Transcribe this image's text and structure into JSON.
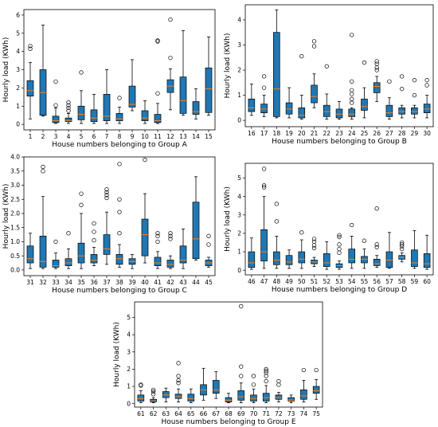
{
  "chart_data": [
    {
      "type": "box",
      "xlabel": "House numbers belonging to Group A",
      "ylabel": "Hourly load (KWh)",
      "ylim": [
        -0.3,
        6.3
      ],
      "yticks": [
        0,
        1,
        2,
        3,
        4,
        5,
        6
      ],
      "ytick_labels": [
        "0",
        "1",
        "2",
        "3",
        "4",
        "5",
        "6"
      ],
      "box_color": "#1f77b4",
      "categories": [
        "1",
        "2",
        "3",
        "4",
        "5",
        "6",
        "7",
        "8",
        "9",
        "10",
        "11",
        "12",
        "13",
        "14",
        "15"
      ],
      "boxes": [
        {
          "wl": 0.3,
          "q1": 1.55,
          "med": 1.85,
          "q3": 2.4,
          "wh": 3.4,
          "fliers": [
            4.15,
            4.3
          ]
        },
        {
          "wl": 0.45,
          "q1": 0.5,
          "med": 1.75,
          "q3": 3.0,
          "wh": 5.45,
          "fliers": []
        },
        {
          "wl": 0.05,
          "q1": 0.1,
          "med": 0.2,
          "q3": 0.45,
          "wh": 0.9,
          "fliers": [
            1.05,
            2.35
          ]
        },
        {
          "wl": 0.05,
          "q1": 0.15,
          "med": 0.2,
          "q3": 0.35,
          "wh": 0.6,
          "fliers": [
            0.75,
            0.9,
            1.05,
            1.2
          ]
        },
        {
          "wl": 0.05,
          "q1": 0.25,
          "med": 0.55,
          "q3": 1.0,
          "wh": 1.85,
          "fliers": [
            2.85
          ]
        },
        {
          "wl": 0.05,
          "q1": 0.15,
          "med": 0.35,
          "q3": 0.8,
          "wh": 1.65,
          "fliers": []
        },
        {
          "wl": 0.05,
          "q1": 0.2,
          "med": 0.45,
          "q3": 1.65,
          "wh": 3.0,
          "fliers": []
        },
        {
          "wl": 0.05,
          "q1": 0.2,
          "med": 0.3,
          "q3": 0.6,
          "wh": 0.95,
          "fliers": [
            1.45
          ]
        },
        {
          "wl": 0.75,
          "q1": 0.95,
          "med": 1.1,
          "q3": 2.1,
          "wh": 3.55,
          "fliers": []
        },
        {
          "wl": 0.05,
          "q1": 0.2,
          "med": 0.35,
          "q3": 0.75,
          "wh": 1.3,
          "fliers": []
        },
        {
          "wl": 0.05,
          "q1": 0.1,
          "med": 0.2,
          "q3": 0.55,
          "wh": 1.15,
          "fliers": [
            1.7,
            4.55,
            4.6
          ]
        },
        {
          "wl": 0.8,
          "q1": 1.75,
          "med": 2.1,
          "q3": 2.45,
          "wh": 3.05,
          "fliers": [
            3.65,
            5.75
          ]
        },
        {
          "wl": 0.5,
          "q1": 0.6,
          "med": 1.3,
          "q3": 2.6,
          "wh": 5.15,
          "fliers": []
        },
        {
          "wl": 0.3,
          "q1": 0.55,
          "med": 0.7,
          "q3": 1.25,
          "wh": 1.95,
          "fliers": []
        },
        {
          "wl": 0.5,
          "q1": 0.65,
          "med": 1.95,
          "q3": 3.1,
          "wh": 4.8,
          "fliers": []
        }
      ]
    },
    {
      "type": "box",
      "xlabel": "House numbers belonging to Group B",
      "ylabel": "Hourly load (KWh)",
      "ylim": [
        -0.25,
        4.6
      ],
      "yticks": [
        0,
        1,
        2,
        3,
        4
      ],
      "ytick_labels": [
        "0",
        "1",
        "2",
        "3",
        "4"
      ],
      "box_color": "#1f77b4",
      "categories": [
        "16",
        "17",
        "18",
        "19",
        "20",
        "21",
        "22",
        "23",
        "24",
        "25",
        "26",
        "27",
        "28",
        "29",
        "30"
      ],
      "boxes": [
        {
          "wl": 0.2,
          "q1": 0.35,
          "med": 0.5,
          "q3": 0.85,
          "wh": 1.45,
          "fliers": []
        },
        {
          "wl": 0.15,
          "q1": 0.3,
          "med": 0.45,
          "q3": 0.65,
          "wh": 1.0,
          "fliers": [
            1.3,
            1.75
          ]
        },
        {
          "wl": 0.1,
          "q1": 0.15,
          "med": 1.25,
          "q3": 3.5,
          "wh": 4.4,
          "fliers": []
        },
        {
          "wl": 0.1,
          "q1": 0.25,
          "med": 0.45,
          "q3": 0.7,
          "wh": 1.3,
          "fliers": []
        },
        {
          "wl": 0.05,
          "q1": 0.1,
          "med": 0.2,
          "q3": 0.5,
          "wh": 1.0,
          "fliers": [
            2.55
          ]
        },
        {
          "wl": 0.5,
          "q1": 0.7,
          "med": 0.95,
          "q3": 1.4,
          "wh": 1.85,
          "fliers": [
            2.95,
            3.15
          ]
        },
        {
          "wl": 0.05,
          "q1": 0.15,
          "med": 0.35,
          "q3": 0.6,
          "wh": 1.05,
          "fliers": [
            2.15
          ]
        },
        {
          "wl": 0.05,
          "q1": 0.1,
          "med": 0.25,
          "q3": 0.45,
          "wh": 0.75,
          "fliers": []
        },
        {
          "wl": 0.05,
          "q1": 0.15,
          "med": 0.25,
          "q3": 0.45,
          "wh": 0.5,
          "fliers": [
            0.7,
            0.85,
            1.05,
            1.2,
            1.55,
            3.4
          ]
        },
        {
          "wl": 0.1,
          "q1": 0.4,
          "med": 0.55,
          "q3": 0.85,
          "wh": 1.3,
          "fliers": [
            2.3
          ]
        },
        {
          "wl": 0.75,
          "q1": 1.1,
          "med": 1.35,
          "q3": 1.5,
          "wh": 1.75,
          "fliers": [
            2.0,
            2.1,
            2.25,
            2.35
          ]
        },
        {
          "wl": 0.05,
          "q1": 0.15,
          "med": 0.3,
          "q3": 0.6,
          "wh": 0.9,
          "fliers": [
            1.55
          ]
        },
        {
          "wl": 0.1,
          "q1": 0.25,
          "med": 0.35,
          "q3": 0.5,
          "wh": 0.6,
          "fliers": [
            1.25,
            1.75
          ]
        },
        {
          "wl": 0.1,
          "q1": 0.25,
          "med": 0.35,
          "q3": 0.5,
          "wh": 0.6,
          "fliers": [
            1.0,
            1.6
          ]
        },
        {
          "wl": 0.1,
          "q1": 0.3,
          "med": 0.45,
          "q3": 0.65,
          "wh": 1.0,
          "fliers": [
            1.4,
            1.6
          ]
        }
      ]
    },
    {
      "type": "box",
      "xlabel": "House numbers belonging to Group C",
      "ylabel": "Hourly load (KWh)",
      "ylim": [
        -0.2,
        4.0
      ],
      "yticks": [
        0,
        0.5,
        1,
        1.5,
        2,
        2.5,
        3,
        3.5,
        4
      ],
      "ytick_labels": [
        "0.0",
        "0.5",
        "1.0",
        "1.5",
        "2.0",
        "2.5",
        "3.0",
        "3.5",
        "4.0"
      ],
      "box_color": "#1f77b4",
      "categories": [
        "31",
        "32",
        "33",
        "34",
        "35",
        "36",
        "37",
        "38",
        "39",
        "40",
        "41",
        "42",
        "43",
        "44",
        "45"
      ],
      "boxes": [
        {
          "wl": 0.05,
          "q1": 0.25,
          "med": 0.4,
          "q3": 0.85,
          "wh": 1.3,
          "fliers": []
        },
        {
          "wl": 0.05,
          "q1": 0.1,
          "med": 0.3,
          "q3": 1.2,
          "wh": 2.6,
          "fliers": [
            3.5,
            3.65
          ]
        },
        {
          "wl": 0.05,
          "q1": 0.1,
          "med": 0.15,
          "q3": 0.35,
          "wh": 0.6,
          "fliers": [
            1.0
          ]
        },
        {
          "wl": 0.05,
          "q1": 0.15,
          "med": 0.25,
          "q3": 0.4,
          "wh": 0.75,
          "fliers": [
            1.3
          ]
        },
        {
          "wl": 0.05,
          "q1": 0.25,
          "med": 0.5,
          "q3": 0.95,
          "wh": 2.0,
          "fliers": [
            2.3,
            2.7
          ]
        },
        {
          "wl": 0.15,
          "q1": 0.25,
          "med": 0.35,
          "q3": 0.55,
          "wh": 0.8,
          "fliers": [
            1.05,
            1.35,
            1.65
          ]
        },
        {
          "wl": 0.2,
          "q1": 0.55,
          "med": 0.75,
          "q3": 1.25,
          "wh": 2.05,
          "fliers": [
            2.55,
            2.65,
            2.75,
            2.85
          ]
        },
        {
          "wl": 0.1,
          "q1": 0.2,
          "med": 0.4,
          "q3": 0.55,
          "wh": 0.9,
          "fliers": [
            1.3,
            2.05,
            2.5,
            3.75
          ]
        },
        {
          "wl": 0.05,
          "q1": 0.2,
          "med": 0.3,
          "q3": 0.4,
          "wh": 0.55,
          "fliers": []
        },
        {
          "wl": 0.25,
          "q1": 0.5,
          "med": 1.25,
          "q3": 1.8,
          "wh": 2.7,
          "fliers": [
            3.9
          ]
        },
        {
          "wl": 0.05,
          "q1": 0.15,
          "med": 0.25,
          "q3": 0.45,
          "wh": 0.65,
          "fliers": [
            1.0,
            1.2,
            1.3
          ]
        },
        {
          "wl": 0.05,
          "q1": 0.1,
          "med": 0.2,
          "q3": 0.35,
          "wh": 0.5,
          "fliers": [
            1.1,
            1.2,
            1.3
          ]
        },
        {
          "wl": 0.05,
          "q1": 0.25,
          "med": 0.35,
          "q3": 0.85,
          "wh": 1.45,
          "fliers": []
        },
        {
          "wl": 0.35,
          "q1": 0.4,
          "med": 1.1,
          "q3": 2.4,
          "wh": 3.3,
          "fliers": []
        },
        {
          "wl": 0.1,
          "q1": 0.15,
          "med": 0.25,
          "q3": 0.35,
          "wh": 0.45,
          "fliers": [
            0.9,
            1.2
          ]
        }
      ]
    },
    {
      "type": "box",
      "xlabel": "House numbers belonging to Group D",
      "ylabel": "Hourly load (KWh)",
      "ylim": [
        -0.25,
        5.8
      ],
      "yticks": [
        0,
        1,
        2,
        3,
        4,
        5
      ],
      "ytick_labels": [
        "0",
        "1",
        "2",
        "3",
        "4",
        "5"
      ],
      "box_color": "#1f77b4",
      "categories": [
        "46",
        "47",
        "48",
        "49",
        "50",
        "51",
        "52",
        "53",
        "54",
        "55",
        "56",
        "57",
        "58",
        "59",
        "60"
      ],
      "boxes": [
        {
          "wl": 0.05,
          "q1": 0.15,
          "med": 0.4,
          "q3": 1.0,
          "wh": 1.75,
          "fliers": []
        },
        {
          "wl": 0.1,
          "q1": 0.5,
          "med": 1.0,
          "q3": 2.2,
          "wh": 4.0,
          "fliers": [
            4.5,
            4.6,
            5.5
          ]
        },
        {
          "wl": 0.1,
          "q1": 0.3,
          "med": 0.55,
          "q3": 1.0,
          "wh": 1.85,
          "fliers": [
            2.65,
            3.6
          ]
        },
        {
          "wl": 0.1,
          "q1": 0.3,
          "med": 0.45,
          "q3": 0.8,
          "wh": 1.1,
          "fliers": []
        },
        {
          "wl": 0.1,
          "q1": 0.4,
          "med": 0.6,
          "q3": 1.0,
          "wh": 1.65,
          "fliers": [
            2.05
          ]
        },
        {
          "wl": 0.2,
          "q1": 0.35,
          "med": 0.45,
          "q3": 0.55,
          "wh": 0.7,
          "fliers": [
            1.2,
            1.35,
            1.55,
            1.7
          ]
        },
        {
          "wl": 0.05,
          "q1": 0.2,
          "med": 0.4,
          "q3": 0.9,
          "wh": 1.55,
          "fliers": []
        },
        {
          "wl": 0.05,
          "q1": 0.15,
          "med": 0.25,
          "q3": 0.35,
          "wh": 0.5,
          "fliers": [
            0.95,
            1.15,
            1.4,
            1.8,
            1.9
          ]
        },
        {
          "wl": 0.1,
          "q1": 0.4,
          "med": 0.6,
          "q3": 1.15,
          "wh": 1.85,
          "fliers": [
            2.45
          ]
        },
        {
          "wl": 0.1,
          "q1": 0.4,
          "med": 0.6,
          "q3": 0.75,
          "wh": 1.15,
          "fliers": [
            1.6
          ]
        },
        {
          "wl": 0.15,
          "q1": 0.25,
          "med": 0.35,
          "q3": 0.6,
          "wh": 0.8,
          "fliers": [
            1.25,
            1.4,
            3.35
          ]
        },
        {
          "wl": 0.1,
          "q1": 0.15,
          "med": 0.55,
          "q3": 1.0,
          "wh": 2.05,
          "fliers": []
        },
        {
          "wl": 0.45,
          "q1": 0.6,
          "med": 0.7,
          "q3": 0.8,
          "wh": 0.95,
          "fliers": [
            1.15,
            1.3,
            1.4,
            1.5
          ]
        },
        {
          "wl": 0.1,
          "q1": 0.2,
          "med": 0.4,
          "q3": 1.1,
          "wh": 2.15,
          "fliers": []
        },
        {
          "wl": 0.05,
          "q1": 0.15,
          "med": 0.35,
          "q3": 0.9,
          "wh": 1.9,
          "fliers": []
        }
      ]
    },
    {
      "type": "box",
      "xlabel": "House numbers belonging to Group E",
      "ylabel": "Hourly load (KWh)",
      "ylim": [
        -0.2,
        5.9
      ],
      "yticks": [
        0,
        1,
        2,
        3,
        4,
        5
      ],
      "ytick_labels": [
        "0",
        "1",
        "2",
        "3",
        "4",
        "5"
      ],
      "box_color": "#1f77b4",
      "categories": [
        "61",
        "62",
        "63",
        "64",
        "65",
        "66",
        "67",
        "68",
        "69",
        "70",
        "71",
        "72",
        "73",
        "74",
        "75"
      ],
      "boxes": [
        {
          "wl": 0.05,
          "q1": 0.15,
          "med": 0.3,
          "q3": 0.5,
          "wh": 0.75,
          "fliers": [
            1.05,
            1.1
          ]
        },
        {
          "wl": 0.05,
          "q1": 0.1,
          "med": 0.15,
          "q3": 0.25,
          "wh": 0.35,
          "fliers": [
            0.55,
            0.7,
            0.8
          ]
        },
        {
          "wl": 0.1,
          "q1": 0.35,
          "med": 0.5,
          "q3": 0.7,
          "wh": 0.9,
          "fliers": []
        },
        {
          "wl": 0.1,
          "q1": 0.3,
          "med": 0.4,
          "q3": 0.55,
          "wh": 0.85,
          "fliers": [
            1.2,
            1.35,
            1.6,
            2.35
          ]
        },
        {
          "wl": 0.05,
          "q1": 0.15,
          "med": 0.3,
          "q3": 0.55,
          "wh": 0.85,
          "fliers": []
        },
        {
          "wl": 0.2,
          "q1": 0.5,
          "med": 0.8,
          "q3": 1.1,
          "wh": 2.05,
          "fliers": []
        },
        {
          "wl": 0.3,
          "q1": 0.6,
          "med": 0.8,
          "q3": 1.35,
          "wh": 1.85,
          "fliers": []
        },
        {
          "wl": 0.05,
          "q1": 0.1,
          "med": 0.2,
          "q3": 0.35,
          "wh": 0.6,
          "fliers": []
        },
        {
          "wl": 0.05,
          "q1": 0.2,
          "med": 0.4,
          "q3": 0.75,
          "wh": 1.2,
          "fliers": [
            1.6,
            2.15,
            5.65
          ]
        },
        {
          "wl": 0.05,
          "q1": 0.15,
          "med": 0.3,
          "q3": 0.5,
          "wh": 0.85,
          "fliers": [
            1.1,
            1.6
          ]
        },
        {
          "wl": 0.05,
          "q1": 0.15,
          "med": 0.35,
          "q3": 0.6,
          "wh": 1.05,
          "fliers": [
            1.3,
            1.6,
            1.8,
            1.9,
            2.0
          ]
        },
        {
          "wl": 0.1,
          "q1": 0.25,
          "med": 0.35,
          "q3": 0.5,
          "wh": 0.65,
          "fliers": [
            1.1,
            1.3
          ]
        },
        {
          "wl": 0.05,
          "q1": 0.15,
          "med": 0.2,
          "q3": 0.35,
          "wh": 0.5,
          "fliers": []
        },
        {
          "wl": 0.1,
          "q1": 0.25,
          "med": 0.45,
          "q3": 0.8,
          "wh": 1.35,
          "fliers": [
            1.95
          ]
        },
        {
          "wl": 0.25,
          "q1": 0.6,
          "med": 0.75,
          "q3": 1.0,
          "wh": 1.4,
          "fliers": [
            1.95
          ]
        }
      ]
    }
  ]
}
